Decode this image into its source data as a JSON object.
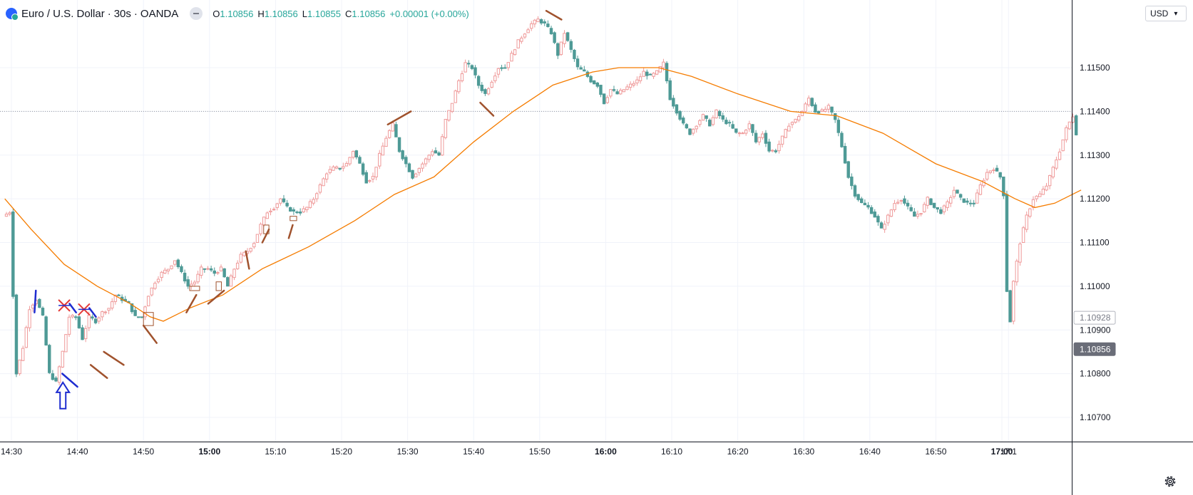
{
  "header": {
    "symbol": "Euro / U.S. Dollar",
    "sep1": "·",
    "interval": "30s",
    "sep2": "·",
    "exchange": "OANDA",
    "o_label": "O",
    "o_value": "1.10856",
    "h_label": "H",
    "h_value": "1.10856",
    "l_label": "L",
    "l_value": "1.10855",
    "c_label": "C",
    "c_value": "1.10856",
    "change": "+0.00001 (+0.00%)"
  },
  "currency": {
    "label": "USD"
  },
  "colors": {
    "up": "#ef9a9a",
    "down": "#4e9a96",
    "ma": "#f57c00",
    "annotation_brown": "#a0522d",
    "annotation_blue": "#1e2cd0",
    "annotation_red": "#e53935",
    "grid": "#f0f3fa"
  },
  "chart_data": {
    "type": "candlestick",
    "title": "",
    "xlabel": "",
    "ylabel": "",
    "ylim": [
      1.1065,
      1.1164
    ],
    "x_range_minutes": [
      "14:30",
      "17:01"
    ],
    "y_ticks": [
      "1.10700",
      "1.10800",
      "1.10900",
      "1.11000",
      "1.11100",
      "1.11200",
      "1.11300",
      "1.11400",
      "1.11500"
    ],
    "x_ticks": [
      {
        "t": "14:30",
        "bold": false
      },
      {
        "t": "14:40",
        "bold": false
      },
      {
        "t": "14:50",
        "bold": false
      },
      {
        "t": "15:00",
        "bold": true
      },
      {
        "t": "15:10",
        "bold": false
      },
      {
        "t": "15:20",
        "bold": false
      },
      {
        "t": "15:30",
        "bold": false
      },
      {
        "t": "15:40",
        "bold": false
      },
      {
        "t": "15:50",
        "bold": false
      },
      {
        "t": "16:00",
        "bold": true
      },
      {
        "t": "16:10",
        "bold": false
      },
      {
        "t": "16:20",
        "bold": false
      },
      {
        "t": "16:30",
        "bold": false
      },
      {
        "t": "16:40",
        "bold": false
      },
      {
        "t": "16:50",
        "bold": false
      },
      {
        "t": "17:00",
        "bold": true
      },
      {
        "t": "17:1",
        "bold": false
      }
    ],
    "price_markers": [
      {
        "label": "1.10928",
        "value": 1.10928,
        "style": "outline"
      },
      {
        "label": "1.10856",
        "value": 1.10856,
        "style": "filled"
      }
    ],
    "crosshair_price": 1.114,
    "price_path": [
      [
        "14:29",
        1.1116
      ],
      [
        "14:30",
        1.1117
      ],
      [
        "14:30.5",
        1.1098
      ],
      [
        "14:31",
        1.108
      ],
      [
        "14:32",
        1.1086
      ],
      [
        "14:33",
        1.1095
      ],
      [
        "14:34",
        1.1097
      ],
      [
        "14:35",
        1.1093
      ],
      [
        "14:36",
        1.108
      ],
      [
        "14:37",
        1.1078
      ],
      [
        "14:38",
        1.1085
      ],
      [
        "14:39",
        1.1093
      ],
      [
        "14:40",
        1.1093
      ],
      [
        "14:41",
        1.1088
      ],
      [
        "14:42",
        1.1093
      ],
      [
        "14:43",
        1.1092
      ],
      [
        "14:44",
        1.1094
      ],
      [
        "14:45",
        1.1095
      ],
      [
        "14:46",
        1.1098
      ],
      [
        "14:47",
        1.1097
      ],
      [
        "14:48",
        1.1096
      ],
      [
        "14:49",
        1.1093
      ],
      [
        "14:50",
        1.1093
      ],
      [
        "14:51",
        1.1098
      ],
      [
        "14:52",
        1.1101
      ],
      [
        "14:53",
        1.1103
      ],
      [
        "14:54",
        1.1104
      ],
      [
        "14:55",
        1.1106
      ],
      [
        "14:56",
        1.1103
      ],
      [
        "14:57",
        1.11
      ],
      [
        "14:58",
        1.1101
      ],
      [
        "14:59",
        1.1104
      ],
      [
        "15:00",
        1.1104
      ],
      [
        "15:01",
        1.1103
      ],
      [
        "15:02",
        1.1104
      ],
      [
        "15:03",
        1.11
      ],
      [
        "15:04",
        1.1104
      ],
      [
        "15:05",
        1.1107
      ],
      [
        "15:06",
        1.1108
      ],
      [
        "15:07",
        1.111
      ],
      [
        "15:08",
        1.1114
      ],
      [
        "15:09",
        1.1117
      ],
      [
        "15:10",
        1.1118
      ],
      [
        "15:11",
        1.112
      ],
      [
        "15:12",
        1.1118
      ],
      [
        "15:13",
        1.1117
      ],
      [
        "15:14",
        1.1117
      ],
      [
        "15:15",
        1.1118
      ],
      [
        "15:16",
        1.112
      ],
      [
        "15:17",
        1.1123
      ],
      [
        "15:18",
        1.1126
      ],
      [
        "15:19",
        1.1127
      ],
      [
        "15:20",
        1.1127
      ],
      [
        "15:21",
        1.1128
      ],
      [
        "15:22",
        1.1131
      ],
      [
        "15:23",
        1.1128
      ],
      [
        "15:24",
        1.1124
      ],
      [
        "15:25",
        1.1125
      ],
      [
        "15:26",
        1.113
      ],
      [
        "15:27",
        1.1134
      ],
      [
        "15:28",
        1.1137
      ],
      [
        "15:29",
        1.1131
      ],
      [
        "15:30",
        1.1128
      ],
      [
        "15:31",
        1.1125
      ],
      [
        "15:32",
        1.1127
      ],
      [
        "15:33",
        1.1129
      ],
      [
        "15:34",
        1.1131
      ],
      [
        "15:35",
        1.113
      ],
      [
        "15:36",
        1.1138
      ],
      [
        "15:37",
        1.1142
      ],
      [
        "15:38",
        1.1147
      ],
      [
        "15:39",
        1.1151
      ],
      [
        "15:40",
        1.115
      ],
      [
        "15:41",
        1.1146
      ],
      [
        "15:42",
        1.1144
      ],
      [
        "15:43",
        1.1147
      ],
      [
        "15:44",
        1.115
      ],
      [
        "15:45",
        1.115
      ],
      [
        "15:46",
        1.1153
      ],
      [
        "15:47",
        1.1156
      ],
      [
        "15:48",
        1.1158
      ],
      [
        "15:49",
        1.116
      ],
      [
        "15:50",
        1.1161
      ],
      [
        "15:51",
        1.116
      ],
      [
        "15:52",
        1.1158
      ],
      [
        "15:53",
        1.1153
      ],
      [
        "15:54",
        1.1158
      ],
      [
        "15:55",
        1.1154
      ],
      [
        "15:56",
        1.115
      ],
      [
        "15:57",
        1.1149
      ],
      [
        "15:58",
        1.1147
      ],
      [
        "15:59",
        1.1146
      ],
      [
        "16:00",
        1.1142
      ],
      [
        "16:01",
        1.1145
      ],
      [
        "16:02",
        1.1144
      ],
      [
        "16:03",
        1.1145
      ],
      [
        "16:04",
        1.1146
      ],
      [
        "16:05",
        1.1147
      ],
      [
        "16:06",
        1.1149
      ],
      [
        "16:07",
        1.1148
      ],
      [
        "16:08",
        1.1149
      ],
      [
        "16:09",
        1.1151
      ],
      [
        "16:10",
        1.1143
      ],
      [
        "16:11",
        1.114
      ],
      [
        "16:12",
        1.1137
      ],
      [
        "16:13",
        1.1135
      ],
      [
        "16:14",
        1.1137
      ],
      [
        "16:15",
        1.1139
      ],
      [
        "16:16",
        1.1137
      ],
      [
        "16:17",
        1.114
      ],
      [
        "16:18",
        1.1138
      ],
      [
        "16:19",
        1.1137
      ],
      [
        "16:20",
        1.1135
      ],
      [
        "16:21",
        1.1135
      ],
      [
        "16:22",
        1.1137
      ],
      [
        "16:23",
        1.1133
      ],
      [
        "16:24",
        1.1135
      ],
      [
        "16:25",
        1.1131
      ],
      [
        "16:26",
        1.1131
      ],
      [
        "16:27",
        1.1134
      ],
      [
        "16:28",
        1.1137
      ],
      [
        "16:29",
        1.1138
      ],
      [
        "16:30",
        1.114
      ],
      [
        "16:31",
        1.1143
      ],
      [
        "16:32",
        1.114
      ],
      [
        "16:33",
        1.114
      ],
      [
        "16:34",
        1.1141
      ],
      [
        "16:35",
        1.1138
      ],
      [
        "16:36",
        1.1132
      ],
      [
        "16:37",
        1.1125
      ],
      [
        "16:38",
        1.1121
      ],
      [
        "16:39",
        1.1119
      ],
      [
        "16:40",
        1.1118
      ],
      [
        "16:41",
        1.1116
      ],
      [
        "16:42",
        1.1113
      ],
      [
        "16:43",
        1.1116
      ],
      [
        "16:44",
        1.1119
      ],
      [
        "16:45",
        1.112
      ],
      [
        "16:46",
        1.1118
      ],
      [
        "16:47",
        1.1116
      ],
      [
        "16:48",
        1.1117
      ],
      [
        "16:49",
        1.112
      ],
      [
        "16:50",
        1.1118
      ],
      [
        "16:51",
        1.1117
      ],
      [
        "16:52",
        1.1119
      ],
      [
        "16:53",
        1.1122
      ],
      [
        "16:54",
        1.112
      ],
      [
        "16:55",
        1.1119
      ],
      [
        "16:56",
        1.1119
      ],
      [
        "16:57",
        1.1123
      ],
      [
        "16:58",
        1.1126
      ],
      [
        "16:59",
        1.1127
      ],
      [
        "17:00",
        1.1125
      ],
      [
        "17:00.5",
        1.1121
      ],
      [
        "17:01",
        1.1099
      ],
      [
        "17:01.5",
        1.1092
      ],
      [
        "17:02",
        1.1101
      ],
      [
        "17:03",
        1.111
      ],
      [
        "17:04",
        1.1116
      ],
      [
        "17:05",
        1.112
      ],
      [
        "17:06",
        1.1121
      ],
      [
        "17:07",
        1.1123
      ],
      [
        "17:08",
        1.1127
      ],
      [
        "17:09",
        1.1131
      ],
      [
        "17:10",
        1.1136
      ],
      [
        "17:11",
        1.1139
      ],
      [
        "17:11.5",
        1.1135
      ]
    ],
    "moving_average": [
      [
        "14:29",
        1.112
      ],
      [
        "14:33",
        1.1113
      ],
      [
        "14:38",
        1.1105
      ],
      [
        "14:43",
        1.11
      ],
      [
        "14:48",
        1.1096
      ],
      [
        "14:51",
        1.1093
      ],
      [
        "14:53",
        1.1092
      ],
      [
        "14:57",
        1.1095
      ],
      [
        "15:02",
        1.1098
      ],
      [
        "15:08",
        1.1104
      ],
      [
        "15:15",
        1.1109
      ],
      [
        "15:22",
        1.1115
      ],
      [
        "15:28",
        1.1121
      ],
      [
        "15:34",
        1.1125
      ],
      [
        "15:40",
        1.1133
      ],
      [
        "15:46",
        1.114
      ],
      [
        "15:52",
        1.1146
      ],
      [
        "15:58",
        1.1149
      ],
      [
        "16:02",
        1.115
      ],
      [
        "16:08",
        1.115
      ],
      [
        "16:13",
        1.1148
      ],
      [
        "16:20",
        1.1144
      ],
      [
        "16:28",
        1.114
      ],
      [
        "16:35",
        1.1139
      ],
      [
        "16:42",
        1.1135
      ],
      [
        "16:50",
        1.1128
      ],
      [
        "16:57",
        1.1124
      ],
      [
        "17:02",
        1.112
      ],
      [
        "17:05",
        1.1118
      ],
      [
        "17:08",
        1.1119
      ],
      [
        "17:12",
        1.1122
      ]
    ],
    "annotations": [
      {
        "kind": "seg",
        "c": "brown",
        "a": [
          "14:42",
          1.1082
        ],
        "b": [
          "14:44.5",
          1.1079
        ]
      },
      {
        "kind": "seg",
        "c": "brown",
        "a": [
          "14:44",
          1.1085
        ],
        "b": [
          "14:47",
          1.1082
        ]
      },
      {
        "kind": "seg",
        "c": "brown",
        "a": [
          "14:50",
          1.1091
        ],
        "b": [
          "14:52",
          1.1087
        ]
      },
      {
        "kind": "seg",
        "c": "brown",
        "a": [
          "14:56.5",
          1.1094
        ],
        "b": [
          "14:58",
          1.1098
        ]
      },
      {
        "kind": "seg",
        "c": "brown",
        "a": [
          "14:59.8",
          1.1096
        ],
        "b": [
          "15:02.2",
          1.1099
        ]
      },
      {
        "kind": "seg",
        "c": "brown",
        "a": [
          "15:05.5",
          1.1108
        ],
        "b": [
          "15:06",
          1.1104
        ]
      },
      {
        "kind": "seg",
        "c": "brown",
        "a": [
          "15:08",
          1.111
        ],
        "b": [
          "15:09",
          1.1113
        ]
      },
      {
        "kind": "seg",
        "c": "brown",
        "a": [
          "15:12",
          1.1111
        ],
        "b": [
          "15:12.6",
          1.1114
        ]
      },
      {
        "kind": "seg",
        "c": "brown",
        "a": [
          "15:27",
          1.1137
        ],
        "b": [
          "15:30.5",
          1.114
        ]
      },
      {
        "kind": "seg",
        "c": "brown",
        "a": [
          "15:41",
          1.1142
        ],
        "b": [
          "15:43",
          1.1139
        ]
      },
      {
        "kind": "seg",
        "c": "brown",
        "a": [
          "15:51",
          1.1163
        ],
        "b": [
          "15:53.3",
          1.1161
        ]
      },
      {
        "kind": "box",
        "a": [
          "14:50",
          1.1094
        ],
        "b": [
          "14:51.5",
          1.1091
        ]
      },
      {
        "kind": "box",
        "a": [
          "14:57",
          1.11
        ],
        "b": [
          "14:58.5",
          1.1099
        ]
      },
      {
        "kind": "box",
        "a": [
          "15:01",
          1.1101
        ],
        "b": [
          "15:01.8",
          1.1099
        ]
      },
      {
        "kind": "box",
        "a": [
          "15:08.2",
          1.1114
        ],
        "b": [
          "15:09",
          1.1112
        ]
      },
      {
        "kind": "box",
        "a": [
          "15:12.2",
          1.1116
        ],
        "b": [
          "15:13.2",
          1.1115
        ]
      },
      {
        "kind": "seg",
        "c": "blue",
        "a": [
          "14:33.5",
          1.1094
        ],
        "b": [
          "14:33.7",
          1.1099
        ]
      },
      {
        "kind": "seg",
        "c": "blue",
        "a": [
          "14:37.7",
          1.108
        ],
        "b": [
          "14:40",
          1.1077
        ]
      },
      {
        "kind": "seg",
        "c": "blue",
        "a": [
          "14:38.8",
          1.1096
        ],
        "b": [
          "14:39.8",
          1.1094
        ]
      },
      {
        "kind": "seg",
        "c": "blue",
        "a": [
          "14:41.8",
          1.1095
        ],
        "b": [
          "14:42.8",
          1.1093
        ]
      },
      {
        "kind": "cross",
        "at": [
          "14:38",
          1.10956
        ]
      },
      {
        "kind": "cross",
        "at": [
          "14:41",
          1.10947
        ]
      },
      {
        "kind": "arrow",
        "at": [
          "14:37.8",
          1.1078
        ],
        "bottom": 1.1072
      }
    ]
  }
}
